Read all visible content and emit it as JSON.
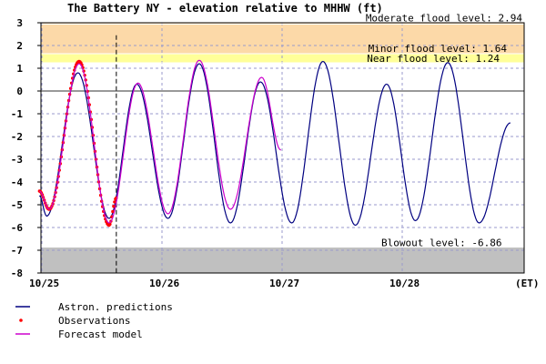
{
  "chart_data": {
    "type": "line",
    "title": "The Battery NY  -  elevation relative to MHHW (ft)",
    "x_unit": "(ET)",
    "ylim": [
      -8,
      3
    ],
    "y_ticks": [
      3,
      2,
      1,
      0,
      -1,
      -2,
      -3,
      -4,
      -5,
      -6,
      -7,
      -8
    ],
    "xlim_days": [
      0,
      4.02
    ],
    "x_ticks": [
      {
        "label": "10/25",
        "day": 0
      },
      {
        "label": "10/26",
        "day": 1
      },
      {
        "label": "10/27",
        "day": 2
      },
      {
        "label": "10/28",
        "day": 3
      }
    ],
    "now_day": 0.62,
    "grid": true,
    "flood_levels": [
      {
        "label": "Moderate flood level: 2.94",
        "value": 2.94,
        "color": "#fcd9a8"
      },
      {
        "label": "Minor flood level: 1.64",
        "value": 1.64,
        "color": "#fcd9a8"
      },
      {
        "label": "Near flood level: 1.24",
        "value": 1.24,
        "color": "#ffff99"
      },
      {
        "label": "Blowout level: -6.86",
        "value": -6.86,
        "color": "#c0c0c0"
      }
    ],
    "series": [
      {
        "name": "Astron. predictions",
        "color": "#000080",
        "style": "line",
        "extrema": [
          [
            -0.02,
            -4.6
          ],
          [
            0.04,
            -5.5
          ],
          [
            0.3,
            0.8
          ],
          [
            0.56,
            -5.6
          ],
          [
            0.79,
            0.3
          ],
          [
            1.05,
            -5.6
          ],
          [
            1.31,
            1.2
          ],
          [
            1.57,
            -5.8
          ],
          [
            1.82,
            0.4
          ],
          [
            2.08,
            -5.8
          ],
          [
            2.34,
            1.3
          ],
          [
            2.61,
            -5.9
          ],
          [
            2.87,
            0.3
          ],
          [
            3.11,
            -5.7
          ],
          [
            3.38,
            1.25
          ],
          [
            3.64,
            -5.8
          ],
          [
            3.9,
            -1.4
          ]
        ]
      },
      {
        "name": "Observations",
        "color": "#ff0000",
        "style": "dots",
        "extrema": [
          [
            -0.02,
            -4.4
          ],
          [
            0.06,
            -5.2
          ],
          [
            0.31,
            1.3
          ],
          [
            0.56,
            -5.9
          ],
          [
            0.62,
            -4.7
          ]
        ]
      },
      {
        "name": "Forecast model",
        "color": "#cc00cc",
        "style": "line",
        "extrema": [
          [
            -0.02,
            -4.4
          ],
          [
            0.06,
            -5.2
          ],
          [
            0.31,
            1.2
          ],
          [
            0.56,
            -5.8
          ],
          [
            0.8,
            0.35
          ],
          [
            1.05,
            -5.4
          ],
          [
            1.31,
            1.35
          ],
          [
            1.57,
            -5.2
          ],
          [
            1.83,
            0.6
          ],
          [
            1.99,
            -2.6
          ]
        ]
      }
    ]
  }
}
